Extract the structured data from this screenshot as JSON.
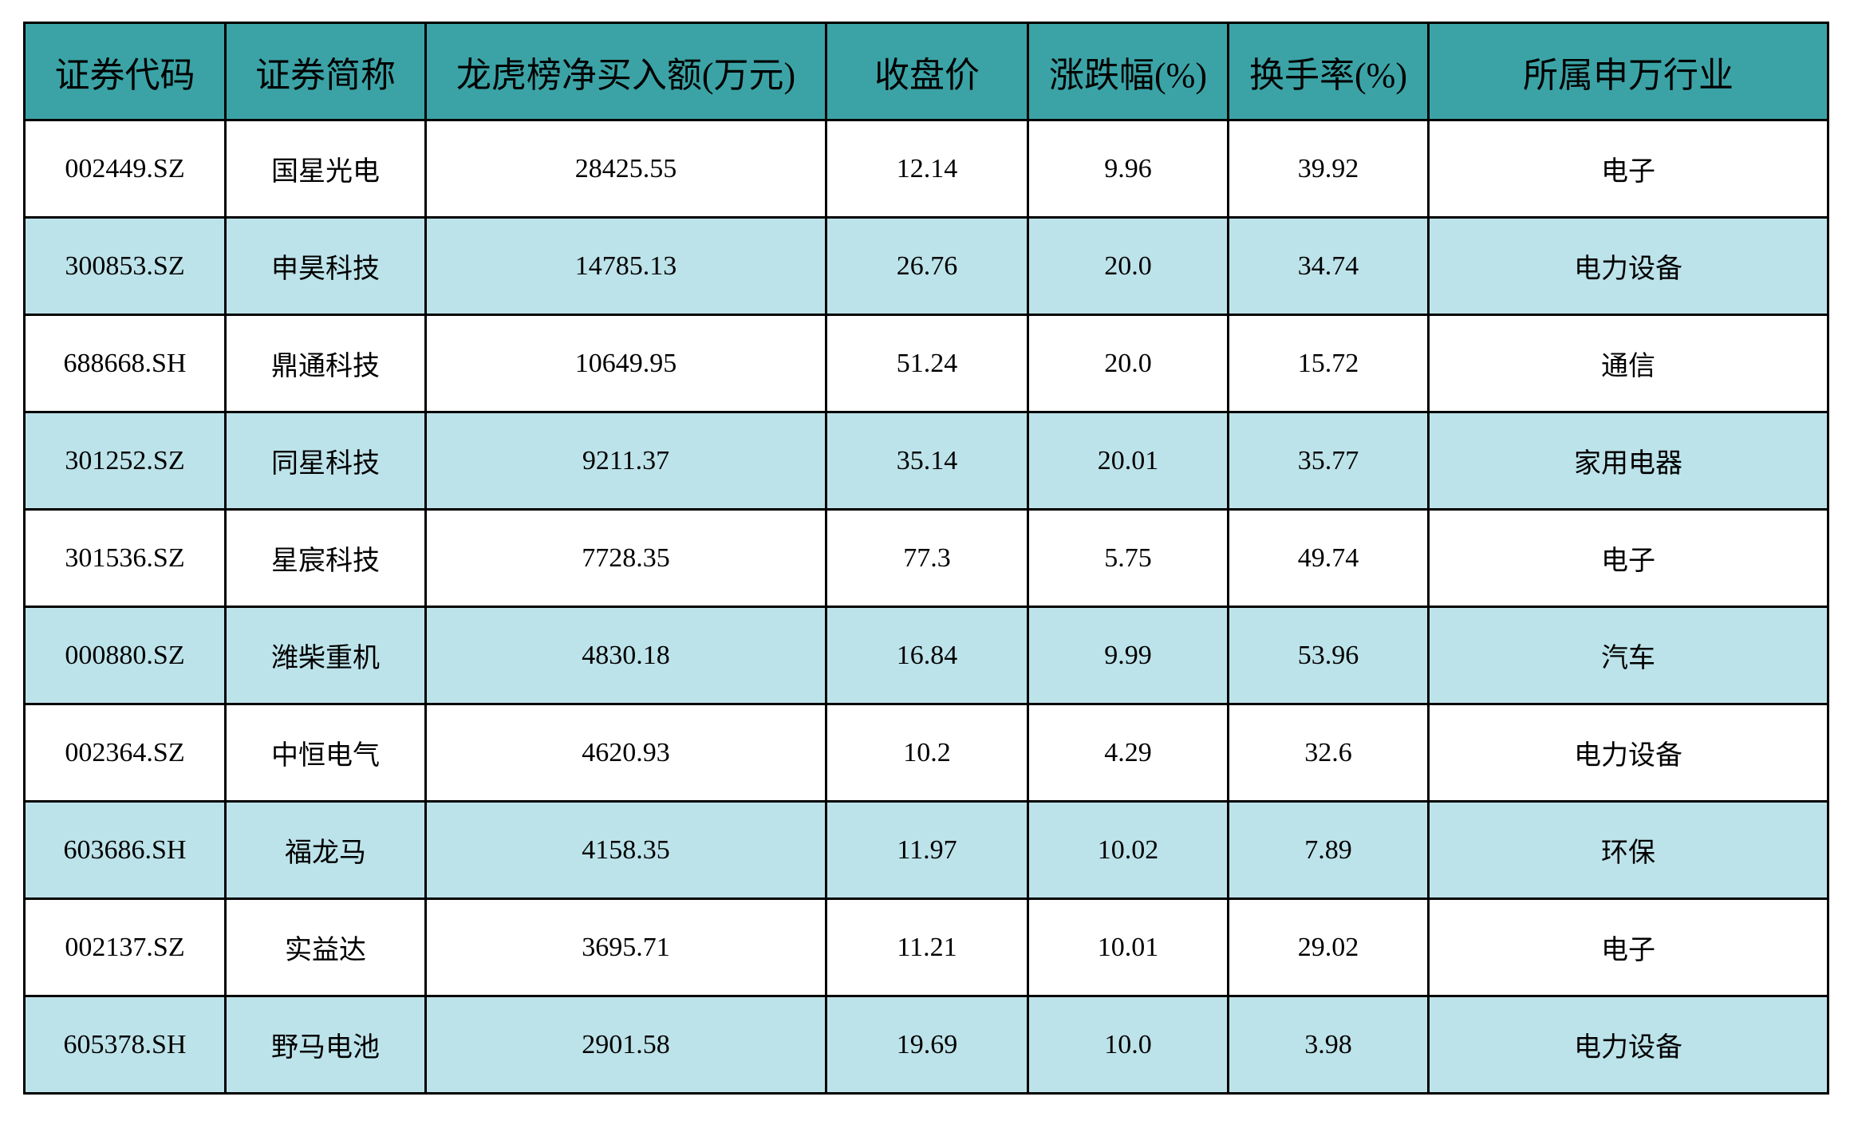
{
  "colors": {
    "header_bg": "#3ba3a6",
    "alt_row_bg": "#bde3ea",
    "row_bg": "#ffffff",
    "border": "#000000"
  },
  "table": {
    "headers": [
      "证券代码",
      "证券简称",
      "龙虎榜净买入额(万元)",
      "收盘价",
      "涨跌幅(%)",
      "换手率(%)",
      "所属申万行业"
    ],
    "rows": [
      [
        "002449.SZ",
        "国星光电",
        "28425.55",
        "12.14",
        "9.96",
        "39.92",
        "电子"
      ],
      [
        "300853.SZ",
        "申昊科技",
        "14785.13",
        "26.76",
        "20.0",
        "34.74",
        "电力设备"
      ],
      [
        "688668.SH",
        "鼎通科技",
        "10649.95",
        "51.24",
        "20.0",
        "15.72",
        "通信"
      ],
      [
        "301252.SZ",
        "同星科技",
        "9211.37",
        "35.14",
        "20.01",
        "35.77",
        "家用电器"
      ],
      [
        "301536.SZ",
        "星宸科技",
        "7728.35",
        "77.3",
        "5.75",
        "49.74",
        "电子"
      ],
      [
        "000880.SZ",
        "潍柴重机",
        "4830.18",
        "16.84",
        "9.99",
        "53.96",
        "汽车"
      ],
      [
        "002364.SZ",
        "中恒电气",
        "4620.93",
        "10.2",
        "4.29",
        "32.6",
        "电力设备"
      ],
      [
        "603686.SH",
        "福龙马",
        "4158.35",
        "11.97",
        "10.02",
        "7.89",
        "环保"
      ],
      [
        "002137.SZ",
        "实益达",
        "3695.71",
        "11.21",
        "10.01",
        "29.02",
        "电子"
      ],
      [
        "605378.SH",
        "野马电池",
        "2901.58",
        "19.69",
        "10.0",
        "3.98",
        "电力设备"
      ]
    ]
  }
}
